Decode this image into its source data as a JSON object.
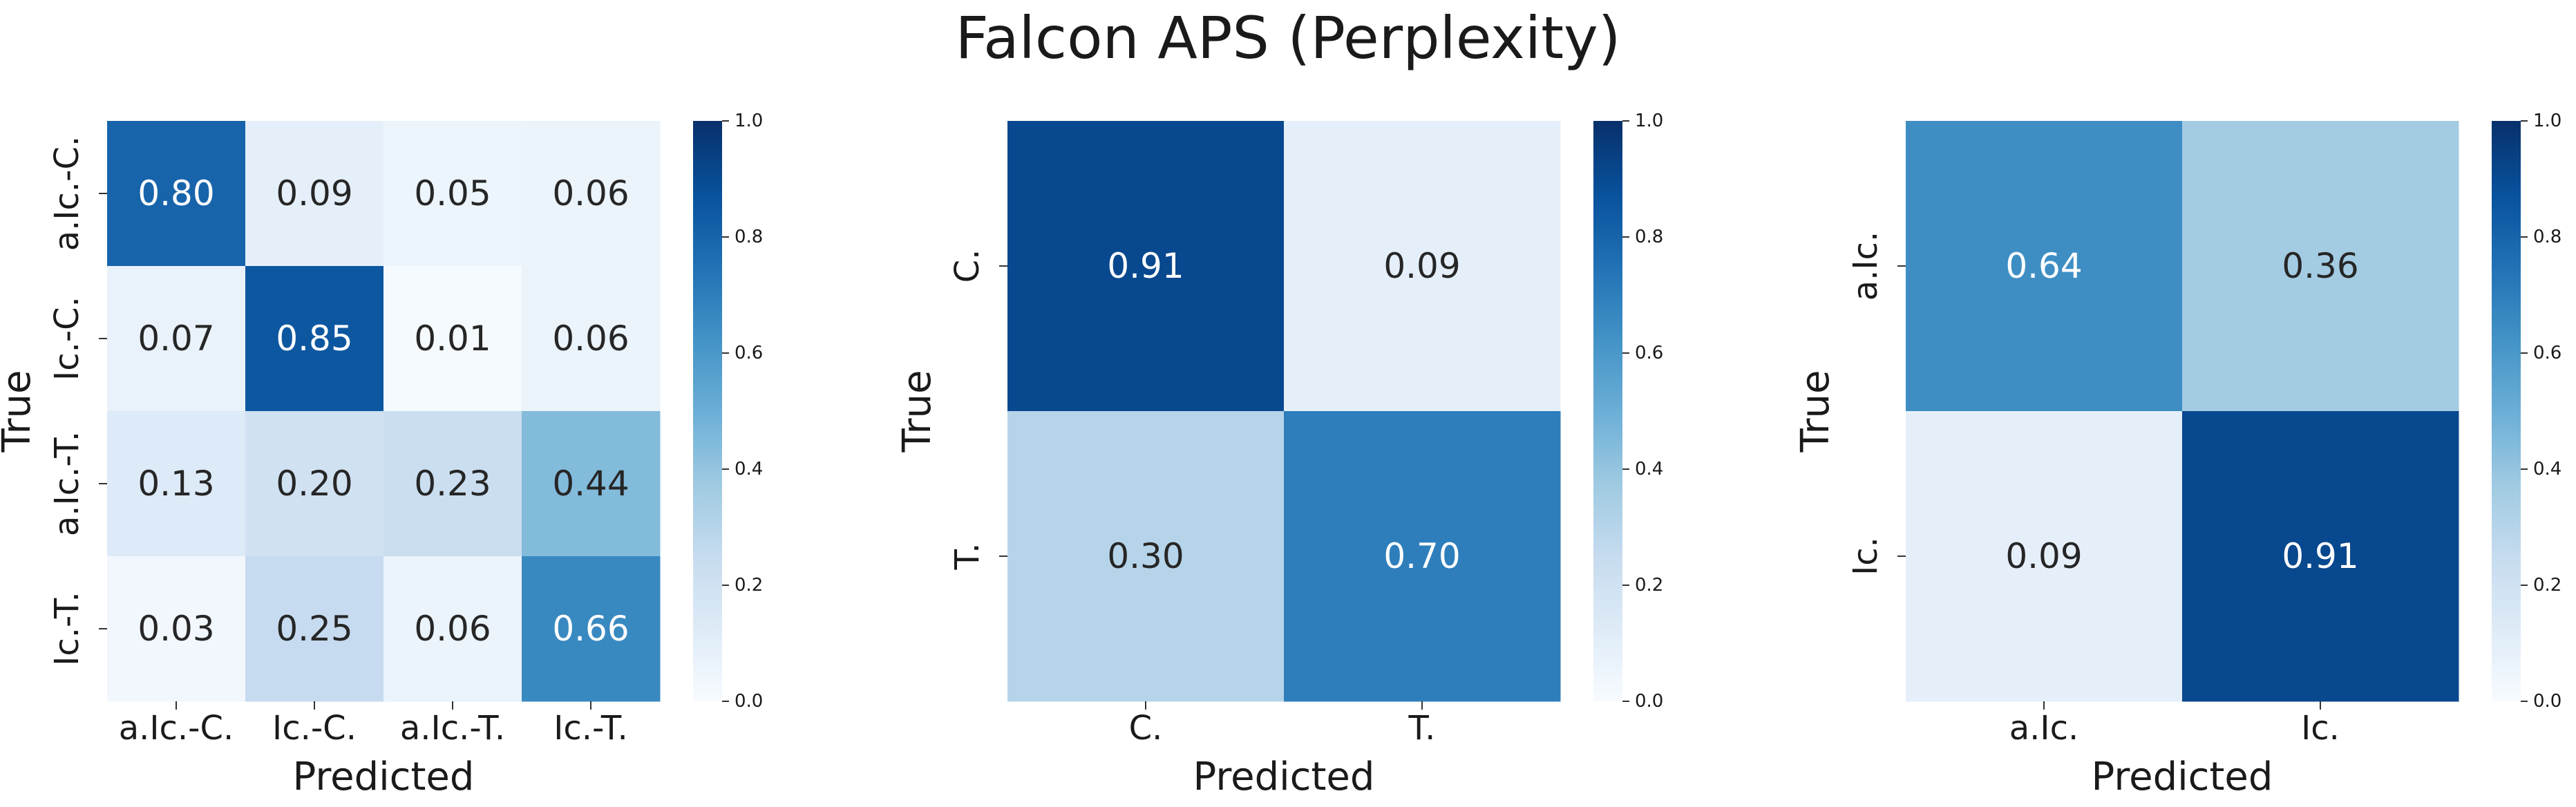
{
  "title": "Falcon APS (Perplexity)",
  "colors": {
    "low": "#f7fbff",
    "high": "#08306b",
    "text_dark": "#262626",
    "text_light": "#ffffff"
  },
  "chart_data": [
    {
      "type": "heatmap",
      "xlabel": "Predicted",
      "ylabel": "True",
      "x_categories": [
        "a.Ic.-C.",
        "Ic.-C.",
        "a.Ic.-T.",
        "Ic.-T."
      ],
      "y_categories": [
        "a.Ic.-C.",
        "Ic.-C.",
        "a.Ic.-T.",
        "Ic.-T."
      ],
      "values": [
        [
          0.8,
          0.09,
          0.05,
          0.06
        ],
        [
          0.07,
          0.85,
          0.01,
          0.06
        ],
        [
          0.13,
          0.2,
          0.23,
          0.44
        ],
        [
          0.03,
          0.25,
          0.06,
          0.66
        ]
      ],
      "colorbar": {
        "range": [
          0.0,
          1.0
        ],
        "ticks": [
          "0.0",
          "0.2",
          "0.4",
          "0.6",
          "0.8",
          "1.0"
        ]
      }
    },
    {
      "type": "heatmap",
      "xlabel": "Predicted",
      "ylabel": "True",
      "x_categories": [
        "C.",
        "T."
      ],
      "y_categories": [
        "C.",
        "T."
      ],
      "values": [
        [
          0.91,
          0.09
        ],
        [
          0.3,
          0.7
        ]
      ],
      "colorbar": {
        "range": [
          0.0,
          1.0
        ],
        "ticks": [
          "0.0",
          "0.2",
          "0.4",
          "0.6",
          "0.8",
          "1.0"
        ]
      }
    },
    {
      "type": "heatmap",
      "xlabel": "Predicted",
      "ylabel": "True",
      "x_categories": [
        "a.Ic.",
        "Ic."
      ],
      "y_categories": [
        "a.Ic.",
        "Ic."
      ],
      "values": [
        [
          0.64,
          0.36
        ],
        [
          0.09,
          0.91
        ]
      ],
      "colorbar": {
        "range": [
          0.0,
          1.0
        ],
        "ticks": [
          "0.0",
          "0.2",
          "0.4",
          "0.6",
          "0.8",
          "1.0"
        ]
      }
    }
  ]
}
